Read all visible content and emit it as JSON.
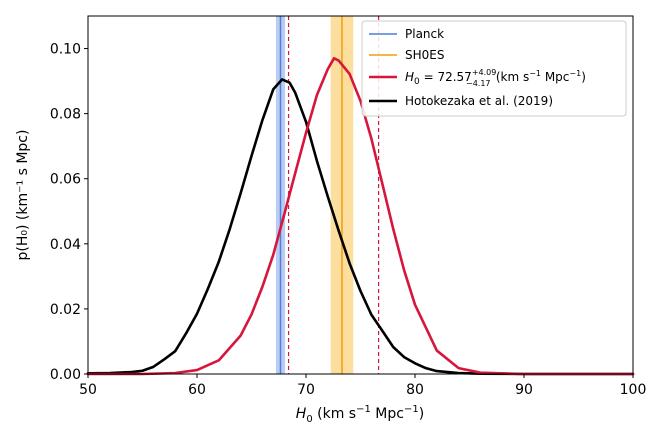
{
  "chart_data": {
    "type": "line",
    "xlabel_main": "H",
    "xlabel_sub": "0",
    "xlabel_rest": " (km s",
    "xlabel_exp1": "−1",
    "xlabel_rest2": " Mpc",
    "xlabel_exp2": "−1",
    "xlabel_end": ")",
    "ylabel": "p(H₀) (km⁻¹ s Mpc)",
    "xlim": [
      50,
      100
    ],
    "ylim": [
      0,
      0.11
    ],
    "xticks": [
      "50",
      "60",
      "70",
      "80",
      "90",
      "100"
    ],
    "xtick_values": [
      50,
      60,
      70,
      80,
      90,
      100
    ],
    "yticks": [
      "0.00",
      "0.02",
      "0.04",
      "0.06",
      "0.08",
      "0.10"
    ],
    "ytick_values": [
      0,
      0.02,
      0.04,
      0.06,
      0.08,
      0.1
    ],
    "colors": {
      "planck": "#4f7fd8",
      "planck_band": "#aec3ee",
      "shoes": "#f39c12",
      "shoes_band": "#fbd88e",
      "h0": "#d6163c",
      "hotokezaka": "#000000"
    },
    "bands": [
      {
        "name": "Planck",
        "center": 67.66,
        "low": 67.24,
        "high": 68.08
      },
      {
        "name": "SH0ES",
        "center": 73.3,
        "low": 72.26,
        "high": 74.34
      }
    ],
    "dashed_lines": [
      68.4,
      76.66
    ],
    "legend_placement": "top-right",
    "legend": {
      "planck": "Planck",
      "shoes": "SH0ES",
      "h0_main": "H",
      "h0_sub": "0",
      "h0_eq": " = 72.57",
      "h0_sup": "+4.09",
      "h0_sub2": "−4.17",
      "h0_unit1": " (km s",
      "h0_unit_exp1": "−1",
      "h0_unit2": " Mpc",
      "h0_unit_exp2": "−1",
      "h0_unit3": ")",
      "hotokezaka": "Hotokezaka et al. (2019)"
    },
    "series": [
      {
        "name": "H0 = 72.57 +4.09 −4.17 (km s−1 Mpc−1)",
        "x": [
          50,
          55,
          58,
          60,
          62,
          64,
          65,
          66,
          67,
          68,
          69,
          70,
          71,
          72,
          72.57,
          73,
          74,
          75,
          76,
          77,
          78,
          79,
          80,
          82,
          84,
          86,
          90,
          95,
          100
        ],
        "y": [
          0.0,
          0.0,
          0.0003,
          0.0012,
          0.0042,
          0.0118,
          0.0183,
          0.0268,
          0.0367,
          0.049,
          0.0616,
          0.0741,
          0.0857,
          0.0937,
          0.097,
          0.0963,
          0.0922,
          0.0839,
          0.0723,
          0.0585,
          0.0446,
          0.0319,
          0.0213,
          0.0072,
          0.0018,
          0.0004,
          0.0,
          0.0,
          0.0
        ]
      },
      {
        "name": "Hotokezaka et al. (2019)",
        "x": [
          50,
          52,
          54,
          55,
          56,
          57,
          58,
          59,
          60,
          61,
          62,
          63,
          64,
          65,
          66,
          67,
          67.8,
          68.5,
          69,
          70,
          71,
          72,
          73,
          74,
          75,
          76,
          77,
          78,
          79,
          80,
          81,
          82,
          84,
          86,
          90,
          100
        ],
        "y": [
          0.0002,
          0.0003,
          0.0006,
          0.001,
          0.0022,
          0.0045,
          0.007,
          0.0125,
          0.0185,
          0.0262,
          0.0345,
          0.0445,
          0.0555,
          0.067,
          0.078,
          0.0875,
          0.0905,
          0.0895,
          0.0865,
          0.0775,
          0.0655,
          0.0545,
          0.044,
          0.034,
          0.0255,
          0.0182,
          0.0133,
          0.0083,
          0.0052,
          0.0033,
          0.0018,
          0.0009,
          0.0003,
          0.0001,
          0.0,
          0.0
        ]
      }
    ]
  }
}
